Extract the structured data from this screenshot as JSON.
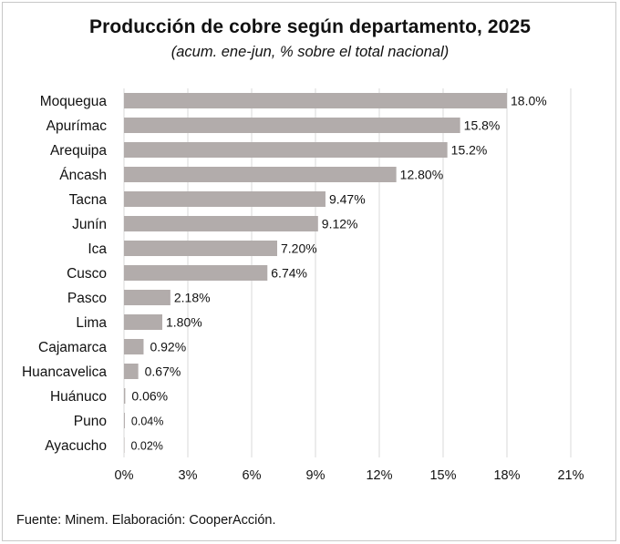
{
  "chart_data": {
    "type": "bar",
    "orientation": "horizontal",
    "title": "Producción de cobre según departamento, 2025",
    "subtitle": "(acum. ene-jun, % sobre el total nacional)",
    "categories": [
      "Moquegua",
      "Apurímac",
      "Arequipa",
      "Áncash",
      "Tacna",
      "Junín",
      "Ica",
      "Cusco",
      "Pasco",
      "Lima",
      "Cajamarca",
      "Huancavelica",
      "Huánuco",
      "Puno",
      "Ayacucho"
    ],
    "values": [
      18.0,
      15.8,
      15.2,
      12.8,
      9.47,
      9.12,
      7.2,
      6.74,
      2.18,
      1.8,
      0.92,
      0.67,
      0.06,
      0.04,
      0.02
    ],
    "data_labels": [
      "18.0%",
      "15.8%",
      "15.2%",
      "12.80%",
      "9.47%",
      "9.12%",
      "7.20%",
      "6.74%",
      "2.18%",
      "1.80%",
      "0.92%",
      "0.67%",
      "0.06%",
      "0.04%",
      "0.02%"
    ],
    "x_ticks": [
      0,
      3,
      6,
      9,
      12,
      15,
      18,
      21
    ],
    "x_tick_labels": [
      "0%",
      "3%",
      "6%",
      "9%",
      "12%",
      "15%",
      "18%",
      "21%"
    ],
    "xlim": [
      0,
      21
    ],
    "grid": "vertical",
    "legend": "none",
    "bar_color": "#b2acab",
    "grid_color": "#d9d9d9"
  },
  "source": "Fuente: Minem. Elaboración: CooperAcción."
}
